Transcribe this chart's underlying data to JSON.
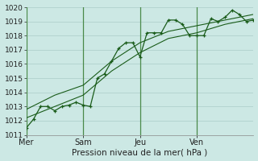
{
  "title": "Pression niveau de la mer( hPa )",
  "bg_color": "#cce8e4",
  "grid_color": "#aaccc8",
  "line_color": "#1a5c1a",
  "ylim": [
    1011,
    1020
  ],
  "yticks": [
    1011,
    1012,
    1013,
    1014,
    1015,
    1016,
    1017,
    1018,
    1019,
    1020
  ],
  "xlim": [
    0,
    96
  ],
  "day_labels": [
    "Mer",
    "Sam",
    "Jeu",
    "Ven"
  ],
  "day_positions": [
    0,
    24,
    48,
    72
  ],
  "line1_x": [
    0,
    3,
    6,
    9,
    12,
    15,
    18,
    21,
    24,
    27,
    30,
    33,
    36,
    39,
    42,
    45,
    48,
    51,
    54,
    57,
    60,
    63,
    66,
    69,
    72,
    75,
    78,
    81,
    84,
    87,
    90,
    93,
    96
  ],
  "line1_y": [
    1011.5,
    1012.1,
    1013.0,
    1013.0,
    1012.7,
    1013.0,
    1013.1,
    1013.3,
    1013.1,
    1013.0,
    1015.0,
    1015.3,
    1016.2,
    1017.1,
    1017.5,
    1017.5,
    1016.5,
    1018.2,
    1018.2,
    1018.2,
    1019.1,
    1019.1,
    1018.8,
    1018.0,
    1018.0,
    1018.0,
    1019.2,
    1019.0,
    1019.3,
    1019.8,
    1019.5,
    1019.0,
    1019.1
  ],
  "line2_x": [
    0,
    12,
    24,
    36,
    48,
    60,
    72,
    84,
    96
  ],
  "line2_y": [
    1012.2,
    1013.0,
    1013.8,
    1015.5,
    1016.8,
    1017.8,
    1018.2,
    1018.8,
    1019.2
  ],
  "line3_x": [
    0,
    12,
    24,
    36,
    48,
    60,
    72,
    84,
    96
  ],
  "line3_y": [
    1012.8,
    1013.8,
    1014.5,
    1016.2,
    1017.5,
    1018.3,
    1018.7,
    1019.1,
    1019.5
  ]
}
